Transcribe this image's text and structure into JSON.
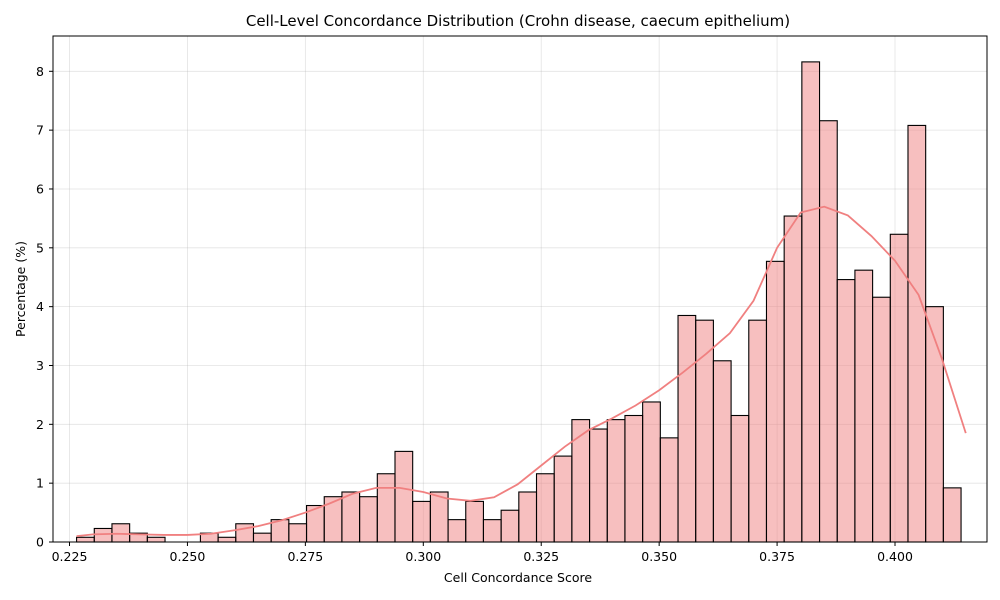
{
  "chart_data": {
    "type": "bar",
    "title": "Cell-Level Concordance Distribution (Crohn disease, caecum epithelium)",
    "xlabel": "Cell Concordance Score",
    "ylabel": "Percentage (%)",
    "xlim": [
      0.2215,
      0.4195
    ],
    "ylim": [
      0,
      8.6
    ],
    "xticks": [
      0.225,
      0.25,
      0.275,
      0.3,
      0.325,
      0.35,
      0.375,
      0.4
    ],
    "xtick_labels": [
      "0.225",
      "0.250",
      "0.275",
      "0.300",
      "0.325",
      "0.350",
      "0.375",
      "0.400"
    ],
    "yticks": [
      0,
      1,
      2,
      3,
      4,
      5,
      6,
      7,
      8
    ],
    "ytick_labels": [
      "0",
      "1",
      "2",
      "3",
      "4",
      "5",
      "6",
      "7",
      "8"
    ],
    "grid": true,
    "bin_start": 0.2265,
    "bin_width": 0.00375,
    "values": [
      0.08,
      0.23,
      0.31,
      0.15,
      0.08,
      0.0,
      0.0,
      0.15,
      0.08,
      0.31,
      0.15,
      0.38,
      0.31,
      0.62,
      0.77,
      0.85,
      0.77,
      1.16,
      1.54,
      0.69,
      0.85,
      0.38,
      0.69,
      0.38,
      0.54,
      0.85,
      1.16,
      1.46,
      2.08,
      1.92,
      2.08,
      2.15,
      2.38,
      1.77,
      3.85,
      3.77,
      3.08,
      2.15,
      3.77,
      4.77,
      5.54,
      8.16,
      7.16,
      4.46,
      4.62,
      4.16,
      5.23,
      7.08,
      4.0,
      0.92
    ],
    "kde": {
      "x": [
        0.2265,
        0.23,
        0.235,
        0.24,
        0.245,
        0.25,
        0.255,
        0.26,
        0.265,
        0.27,
        0.275,
        0.28,
        0.285,
        0.29,
        0.295,
        0.3,
        0.305,
        0.31,
        0.315,
        0.32,
        0.325,
        0.33,
        0.335,
        0.34,
        0.345,
        0.35,
        0.355,
        0.36,
        0.365,
        0.37,
        0.375,
        0.38,
        0.385,
        0.39,
        0.395,
        0.4,
        0.405,
        0.41,
        0.415
      ],
      "y": [
        0.1,
        0.13,
        0.14,
        0.13,
        0.12,
        0.12,
        0.14,
        0.2,
        0.27,
        0.37,
        0.5,
        0.65,
        0.82,
        0.92,
        0.92,
        0.85,
        0.74,
        0.7,
        0.76,
        0.98,
        1.3,
        1.62,
        1.9,
        2.1,
        2.32,
        2.58,
        2.88,
        3.2,
        3.55,
        4.1,
        5.0,
        5.6,
        5.7,
        5.55,
        5.2,
        4.78,
        4.2,
        3.1,
        1.85
      ]
    }
  }
}
